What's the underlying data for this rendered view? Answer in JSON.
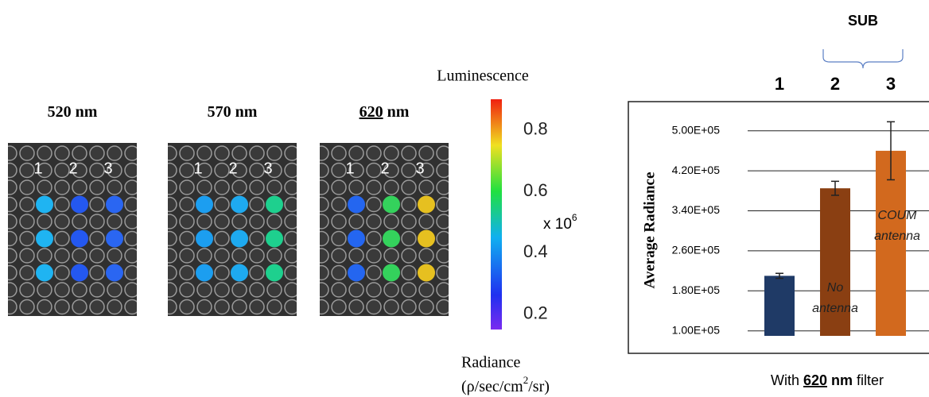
{
  "plates": [
    {
      "wavelength": "520",
      "unit": "nm",
      "underline": false,
      "columns": [
        "1",
        "2",
        "3"
      ],
      "spot_colors": [
        "#1fb4f2",
        "#2458f0",
        "#2a66f2"
      ]
    },
    {
      "wavelength": "570",
      "unit": "nm",
      "underline": false,
      "columns": [
        "1",
        "2",
        "3"
      ],
      "spot_colors": [
        "#1c9ef0",
        "#1eaaf0",
        "#1ed08e"
      ]
    },
    {
      "wavelength": "620",
      "unit": "nm",
      "underline": true,
      "columns": [
        "1",
        "2",
        "3"
      ],
      "spot_colors": [
        "#2466f0",
        "#34d25c",
        "#e6c020"
      ]
    }
  ],
  "colorbar": {
    "title": "Luminescence",
    "lim": [
      0.15,
      0.9
    ],
    "ticks": [
      0.8,
      0.6,
      0.4,
      0.2
    ],
    "multiplier": {
      "base": "x 10",
      "exponent": "6"
    },
    "unit_name": "Radiance",
    "unit_parts": [
      "(ρ/sec/cm",
      "2",
      "/sr)"
    ]
  },
  "chart_data": {
    "type": "bar",
    "group_label": "SUB",
    "categories": [
      "1",
      "2",
      "3"
    ],
    "y_label": "Average Radiance",
    "values": [
      210000,
      385000,
      460000
    ],
    "errors": [
      5000,
      14000,
      58000
    ],
    "colors": [
      "#1f3a66",
      "#8a3f12",
      "#d2691e"
    ],
    "bar_labels": [
      null,
      [
        "No",
        "antenna"
      ],
      [
        "COUM",
        "antenna"
      ]
    ],
    "ylim": [
      90000,
      540000
    ],
    "yticks": [
      {
        "value": 100000,
        "label": "1.00E+05"
      },
      {
        "value": 180000,
        "label": "1.80E+05"
      },
      {
        "value": 260000,
        "label": "2.60E+05"
      },
      {
        "value": 340000,
        "label": "3.40E+05"
      },
      {
        "value": 420000,
        "label": "4.20E+05"
      },
      {
        "value": 500000,
        "label": "5.00E+05"
      }
    ],
    "grid": true,
    "caption_parts": [
      "With ",
      "620",
      " nm",
      " filter"
    ]
  }
}
